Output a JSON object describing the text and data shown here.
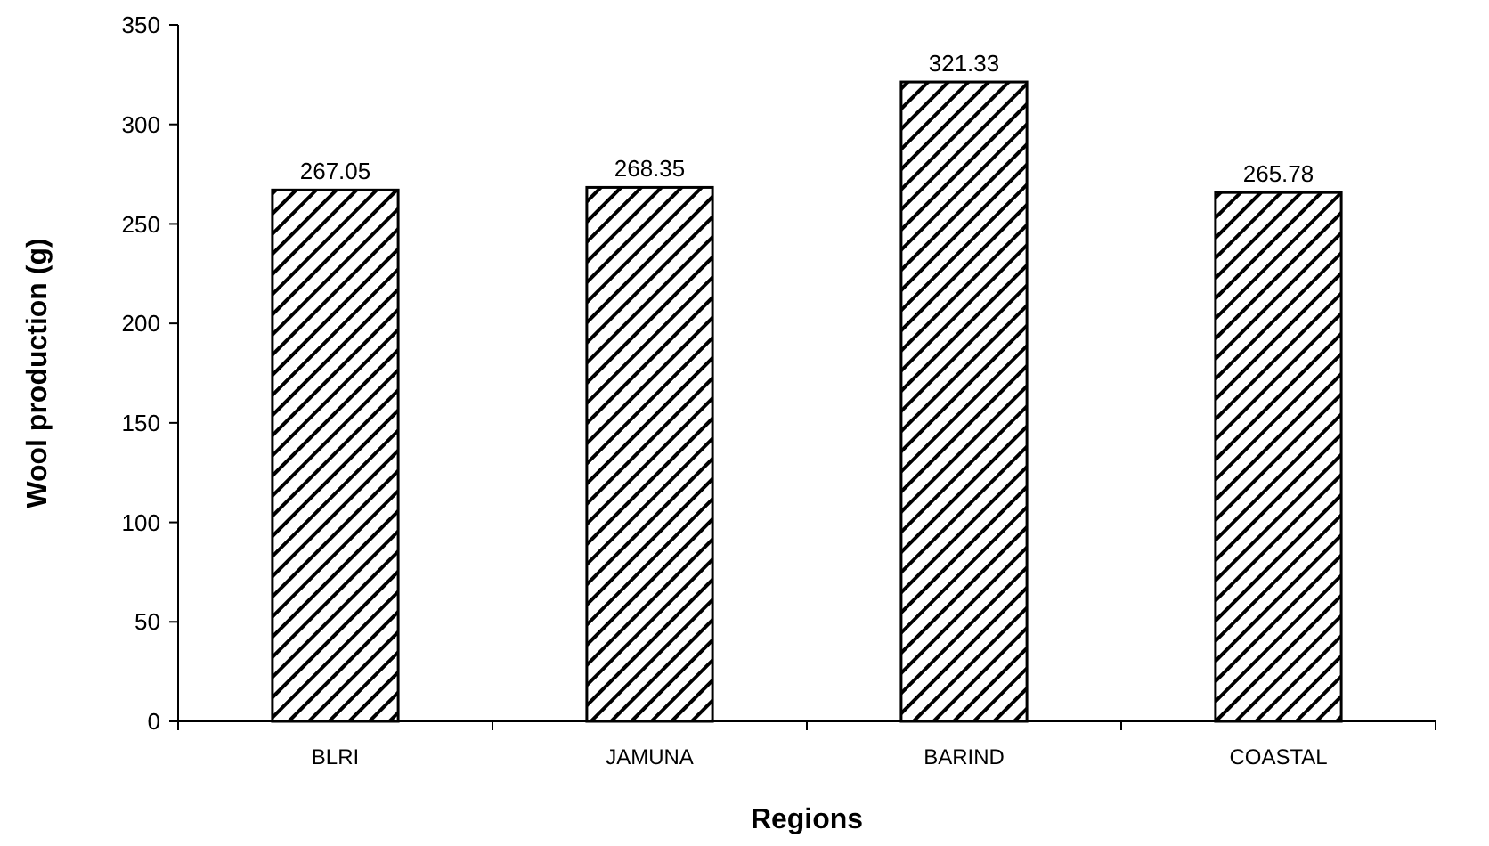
{
  "chart_data": {
    "type": "bar",
    "xlabel": "Regions",
    "ylabel": "Wool production (g)",
    "categories": [
      "BLRI",
      "JAMUNA",
      "BARIND",
      "COASTAL"
    ],
    "values": [
      267.05,
      268.35,
      321.33,
      265.78
    ],
    "color": "#000000",
    "ylim": [
      0,
      350
    ],
    "yticks": [
      0,
      50,
      100,
      150,
      200,
      250,
      300,
      350
    ],
    "data_labels": true,
    "grid": false
  }
}
